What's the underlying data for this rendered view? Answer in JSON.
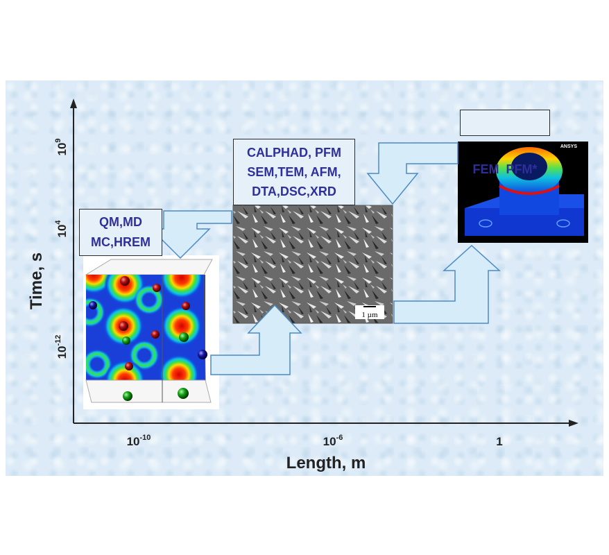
{
  "axes": {
    "y_title": "Time, s",
    "x_title": "Length, m",
    "y_ticks": [
      {
        "base": "10",
        "exp": "9"
      },
      {
        "base": "10",
        "exp": "4"
      },
      {
        "base": "10",
        "exp": "-12"
      }
    ],
    "x_ticks": [
      {
        "base": "10",
        "exp": "-10"
      },
      {
        "base": "10",
        "exp": "-6"
      },
      {
        "base": "1",
        "exp": ""
      }
    ]
  },
  "boxes": {
    "atomic": {
      "lines": [
        "QM,MD",
        "MC,HREM"
      ]
    },
    "micro": {
      "lines": [
        "CALPHAD, PFM",
        "SEM,TEM, AFM,",
        "DTA,DSC,XRD"
      ]
    },
    "macro": {
      "lines": [
        "FEM  PFM*"
      ]
    }
  },
  "images": {
    "micrograph_scale": "1 µm",
    "fem_logo": "ANSYS"
  },
  "colors": {
    "arrow_fill": "#d6ecf8",
    "arrow_stroke": "#4a8ac4",
    "label_text": "#2f2f9c",
    "panel_bg": "#dcebf7"
  }
}
